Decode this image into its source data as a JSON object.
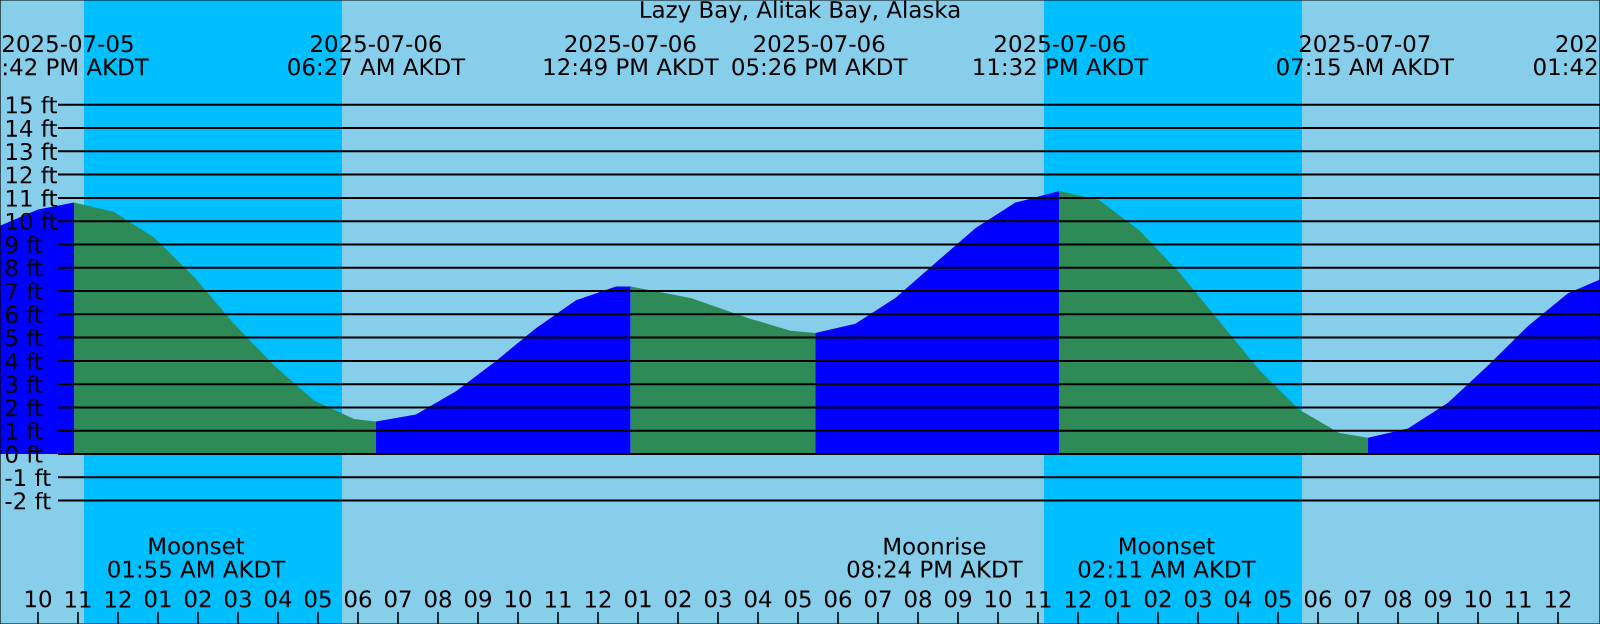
{
  "chart_data": {
    "type": "area",
    "title": "Lazy Bay, Alitak Bay, Alaska",
    "xlim": [
      "2025-07-05T21:03",
      "2025-07-07T13:03"
    ],
    "ylim": [
      -7.3,
      19.5
    ],
    "xticks": [
      {
        "value": "2025-07-05T22:00",
        "label": "10"
      },
      {
        "value": "2025-07-05T23:00",
        "label": "11"
      },
      {
        "value": "2025-07-06T00:00",
        "label": "12"
      },
      {
        "value": "2025-07-06T01:00",
        "label": "01"
      },
      {
        "value": "2025-07-06T02:00",
        "label": "02"
      },
      {
        "value": "2025-07-06T03:00",
        "label": "03"
      },
      {
        "value": "2025-07-06T04:00",
        "label": "04"
      },
      {
        "value": "2025-07-06T05:00",
        "label": "05"
      },
      {
        "value": "2025-07-06T06:00",
        "label": "06"
      },
      {
        "value": "2025-07-06T07:00",
        "label": "07"
      },
      {
        "value": "2025-07-06T08:00",
        "label": "08"
      },
      {
        "value": "2025-07-06T09:00",
        "label": "09"
      },
      {
        "value": "2025-07-06T10:00",
        "label": "10"
      },
      {
        "value": "2025-07-06T11:00",
        "label": "11"
      },
      {
        "value": "2025-07-06T12:00",
        "label": "12"
      },
      {
        "value": "2025-07-06T13:00",
        "label": "01"
      },
      {
        "value": "2025-07-06T14:00",
        "label": "02"
      },
      {
        "value": "2025-07-06T15:00",
        "label": "03"
      },
      {
        "value": "2025-07-06T16:00",
        "label": "04"
      },
      {
        "value": "2025-07-06T17:00",
        "label": "05"
      },
      {
        "value": "2025-07-06T18:00",
        "label": "06"
      },
      {
        "value": "2025-07-06T19:00",
        "label": "07"
      },
      {
        "value": "2025-07-06T20:00",
        "label": "08"
      },
      {
        "value": "2025-07-06T21:00",
        "label": "09"
      },
      {
        "value": "2025-07-06T22:00",
        "label": "10"
      },
      {
        "value": "2025-07-06T23:00",
        "label": "11"
      },
      {
        "value": "2025-07-07T00:00",
        "label": "12"
      },
      {
        "value": "2025-07-07T01:00",
        "label": "01"
      },
      {
        "value": "2025-07-07T02:00",
        "label": "02"
      },
      {
        "value": "2025-07-07T03:00",
        "label": "03"
      },
      {
        "value": "2025-07-07T04:00",
        "label": "04"
      },
      {
        "value": "2025-07-07T05:00",
        "label": "05"
      },
      {
        "value": "2025-07-07T06:00",
        "label": "06"
      },
      {
        "value": "2025-07-07T07:00",
        "label": "07"
      },
      {
        "value": "2025-07-07T08:00",
        "label": "08"
      },
      {
        "value": "2025-07-07T09:00",
        "label": "09"
      },
      {
        "value": "2025-07-07T10:00",
        "label": "10"
      },
      {
        "value": "2025-07-07T11:00",
        "label": "11"
      },
      {
        "value": "2025-07-07T12:00",
        "label": "12"
      }
    ],
    "yticks": [
      {
        "value": 15,
        "label": "15 ft"
      },
      {
        "value": 14,
        "label": "14 ft"
      },
      {
        "value": 13,
        "label": "13 ft"
      },
      {
        "value": 12,
        "label": "12 ft"
      },
      {
        "value": 11,
        "label": "11 ft"
      },
      {
        "value": 10,
        "label": "10 ft"
      },
      {
        "value": 9,
        "label": "9 ft"
      },
      {
        "value": 8,
        "label": "8 ft"
      },
      {
        "value": 7,
        "label": "7 ft"
      },
      {
        "value": 6,
        "label": "6 ft"
      },
      {
        "value": 5,
        "label": "5 ft"
      },
      {
        "value": 4,
        "label": "4 ft"
      },
      {
        "value": 3,
        "label": "3 ft"
      },
      {
        "value": 2,
        "label": "2 ft"
      },
      {
        "value": 1,
        "label": "1 ft"
      },
      {
        "value": 0,
        "label": "0 ft"
      },
      {
        "value": -1,
        "label": "-1 ft"
      },
      {
        "value": -2,
        "label": "-2 ft"
      }
    ],
    "grid": "y",
    "bands": [
      {
        "axis": "x",
        "from": "2025-07-05T21:03",
        "to": "2025-07-05T23:09",
        "color": "#87ceeb"
      },
      {
        "axis": "x",
        "from": "2025-07-05T23:09",
        "to": "2025-07-06T05:36",
        "color": "#00bfff"
      },
      {
        "axis": "x",
        "from": "2025-07-06T05:36",
        "to": "2025-07-06T23:09",
        "color": "#87ceeb"
      },
      {
        "axis": "x",
        "from": "2025-07-06T23:09",
        "to": "2025-07-07T05:36",
        "color": "#00bfff"
      },
      {
        "axis": "x",
        "from": "2025-07-07T05:36",
        "to": "2025-07-07T13:03",
        "color": "#87ceeb"
      }
    ],
    "series": [
      {
        "color": "#0000ff",
        "x": [
          "2025-07-05T21:03",
          "2025-07-05T22:00",
          "2025-07-05T22:54"
        ],
        "values": [
          9.8,
          10.5,
          10.8
        ]
      },
      {
        "color": "#2e8b57",
        "x": [
          "2025-07-05T22:54",
          "2025-07-05T23:54",
          "2025-07-06T00:54",
          "2025-07-06T01:54",
          "2025-07-06T02:54",
          "2025-07-06T03:54",
          "2025-07-06T04:54",
          "2025-07-06T05:54",
          "2025-07-06T06:27"
        ],
        "values": [
          10.8,
          10.4,
          9.3,
          7.6,
          5.6,
          3.8,
          2.3,
          1.5,
          1.4
        ]
      },
      {
        "color": "#0000ff",
        "x": [
          "2025-07-06T06:27",
          "2025-07-06T07:27",
          "2025-07-06T08:27",
          "2025-07-06T09:27",
          "2025-07-06T10:27",
          "2025-07-06T11:27",
          "2025-07-06T12:27",
          "2025-07-06T12:49"
        ],
        "values": [
          1.4,
          1.7,
          2.7,
          4.0,
          5.4,
          6.6,
          7.2,
          7.2
        ]
      },
      {
        "color": "#2e8b57",
        "x": [
          "2025-07-06T12:49",
          "2025-07-06T14:19",
          "2025-07-06T15:49",
          "2025-07-06T16:49",
          "2025-07-06T17:26"
        ],
        "values": [
          7.2,
          6.7,
          5.8,
          5.3,
          5.2
        ]
      },
      {
        "color": "#0000ff",
        "x": [
          "2025-07-06T17:26",
          "2025-07-06T18:26",
          "2025-07-06T19:26",
          "2025-07-06T20:26",
          "2025-07-06T21:26",
          "2025-07-06T22:26",
          "2025-07-06T23:32"
        ],
        "values": [
          5.2,
          5.6,
          6.7,
          8.2,
          9.7,
          10.8,
          11.3
        ]
      },
      {
        "color": "#2e8b57",
        "x": [
          "2025-07-06T23:32",
          "2025-07-07T00:32",
          "2025-07-07T01:32",
          "2025-07-07T02:32",
          "2025-07-07T03:32",
          "2025-07-07T04:32",
          "2025-07-07T05:32",
          "2025-07-07T06:32",
          "2025-07-07T07:15"
        ],
        "values": [
          11.3,
          10.9,
          9.6,
          7.8,
          5.7,
          3.6,
          1.9,
          0.9,
          0.7
        ]
      },
      {
        "color": "#0000ff",
        "x": [
          "2025-07-07T07:15",
          "2025-07-07T08:15",
          "2025-07-07T09:15",
          "2025-07-07T10:15",
          "2025-07-07T11:15",
          "2025-07-07T12:15",
          "2025-07-07T13:03"
        ],
        "values": [
          0.7,
          1.1,
          2.2,
          3.8,
          5.5,
          6.9,
          7.5
        ]
      }
    ],
    "annotations": [
      "2025-07-05",
      ":42 PM AKDT",
      "2025-07-06",
      "06:27 AM AKDT",
      "2025-07-06",
      "12:49 PM AKDT",
      "2025-07-06",
      "05:26 PM AKDT",
      "2025-07-06",
      "11:32 PM AKDT",
      "2025-07-07",
      "07:15 AM AKDT",
      "202",
      "01:42",
      "Moonset",
      "01:55 AM AKDT",
      "Moonrise",
      "08:24 PM AKDT",
      "Moonset",
      "02:11 AM AKDT"
    ]
  }
}
